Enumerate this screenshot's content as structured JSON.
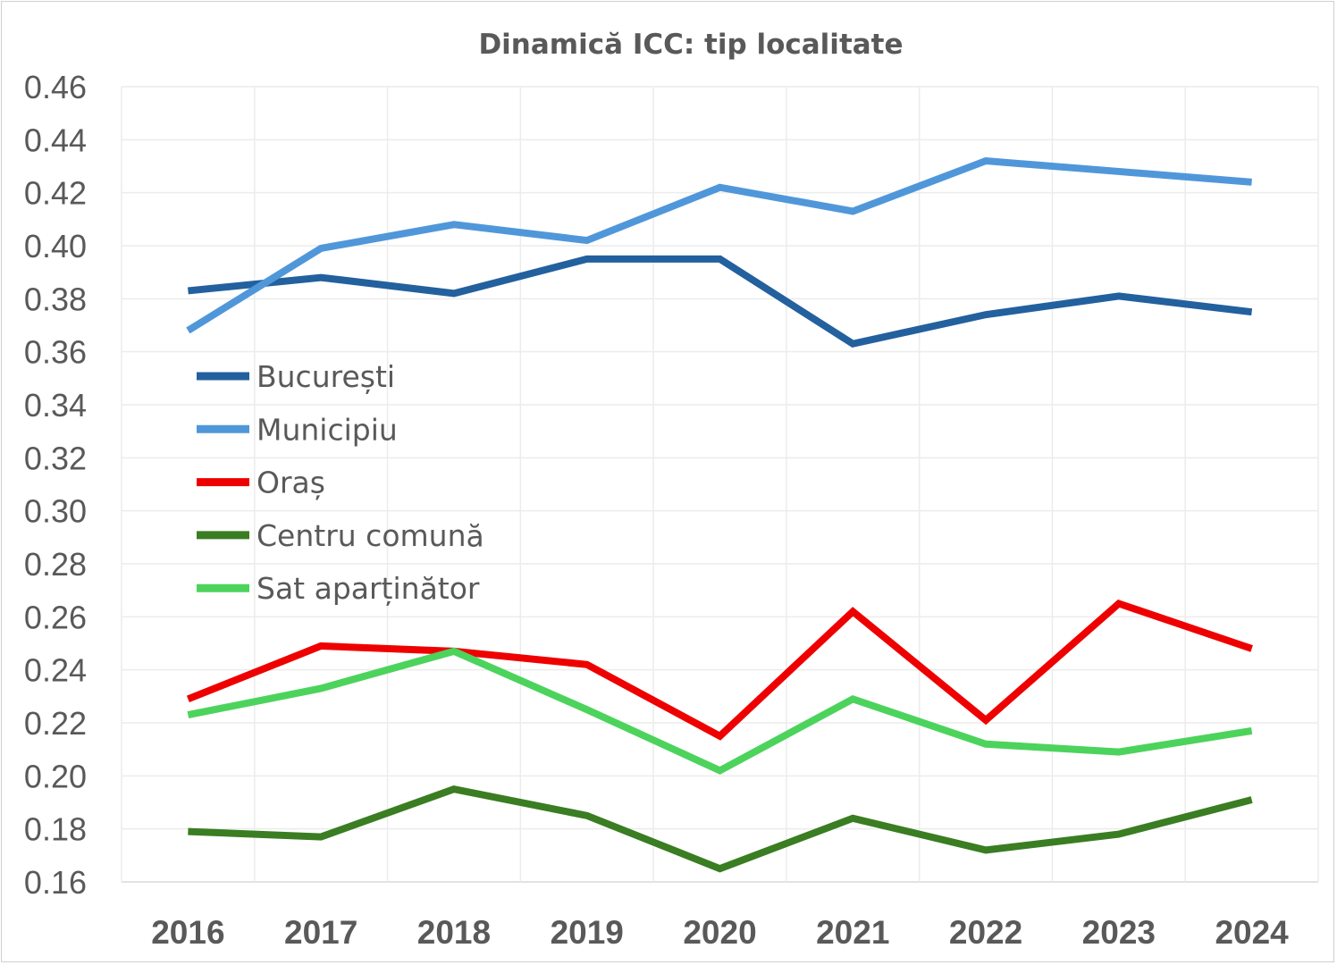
{
  "chart_data": {
    "type": "line",
    "title": "Dinamică ICC: tip localitate",
    "xlabel": "",
    "ylabel": "",
    "x": [
      "2016",
      "2017",
      "2018",
      "2019",
      "2020",
      "2021",
      "2022",
      "2023",
      "2024"
    ],
    "ylim": [
      0.16,
      0.46
    ],
    "yticks": [
      "0.16",
      "0.18",
      "0.20",
      "0.22",
      "0.24",
      "0.26",
      "0.28",
      "0.30",
      "0.32",
      "0.34",
      "0.36",
      "0.38",
      "0.40",
      "0.42",
      "0.44",
      "0.46"
    ],
    "grid": true,
    "legend_position": "left-middle",
    "series": [
      {
        "name": "București",
        "color": "#23609e",
        "values": [
          0.383,
          0.388,
          0.382,
          0.395,
          0.395,
          0.363,
          0.374,
          0.381,
          0.375
        ]
      },
      {
        "name": "Municipiu",
        "color": "#5097da",
        "values": [
          0.368,
          0.399,
          0.408,
          0.402,
          0.422,
          0.413,
          0.432,
          0.428,
          0.424
        ]
      },
      {
        "name": "Oraș",
        "color": "#ee0000",
        "values": [
          0.229,
          0.249,
          0.247,
          0.242,
          0.215,
          0.262,
          0.221,
          0.265,
          0.248
        ]
      },
      {
        "name": "Centru comună",
        "color": "#3a7d22",
        "values": [
          0.179,
          0.177,
          0.195,
          0.185,
          0.165,
          0.184,
          0.172,
          0.178,
          0.191
        ]
      },
      {
        "name": "Sat aparținător",
        "color": "#4cd35c",
        "values": [
          0.223,
          0.233,
          0.247,
          0.225,
          0.202,
          0.229,
          0.212,
          0.209,
          0.217
        ]
      }
    ]
  }
}
